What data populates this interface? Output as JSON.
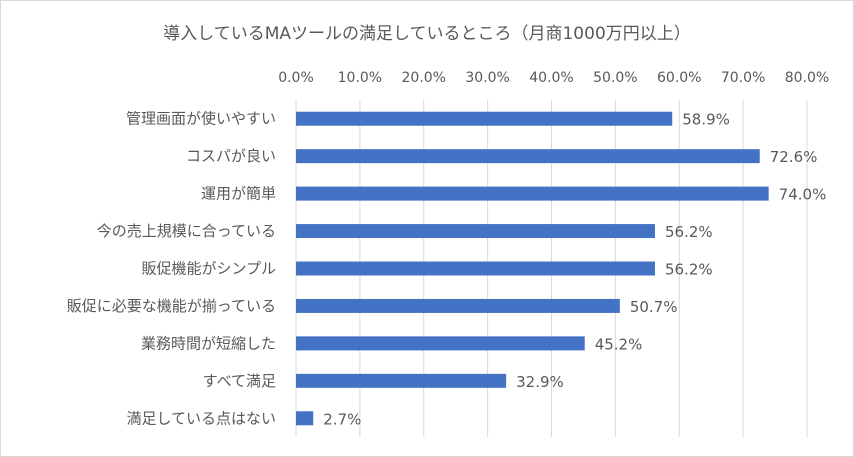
{
  "chart_data": {
    "type": "bar",
    "orientation": "horizontal",
    "title": "導入しているMAツールの満足しているところ（月商1000万円以上）",
    "xlabel": "",
    "ylabel": "",
    "xlim": [
      0,
      80
    ],
    "x_ticks": [
      "0.0%",
      "10.0%",
      "20.0%",
      "30.0%",
      "40.0%",
      "50.0%",
      "60.0%",
      "70.0%",
      "80.0%"
    ],
    "x_tick_position": "top",
    "grid": true,
    "legend": "none",
    "bar_color": "#4472c4",
    "categories": [
      "管理画面が使いやすい",
      "コスパが良い",
      "運用が簡単",
      "今の売上規模に合っている",
      "販促機能がシンプル",
      "販促に必要な機能が揃っている",
      "業務時間が短縮した",
      "すべて満足",
      "満足している点はない"
    ],
    "values": [
      58.9,
      72.6,
      74.0,
      56.2,
      56.2,
      50.7,
      45.2,
      32.9,
      2.7
    ],
    "data_labels": [
      "58.9%",
      "72.6%",
      "74.0%",
      "56.2%",
      "56.2%",
      "50.7%",
      "45.2%",
      "32.9%",
      "2.7%"
    ]
  }
}
